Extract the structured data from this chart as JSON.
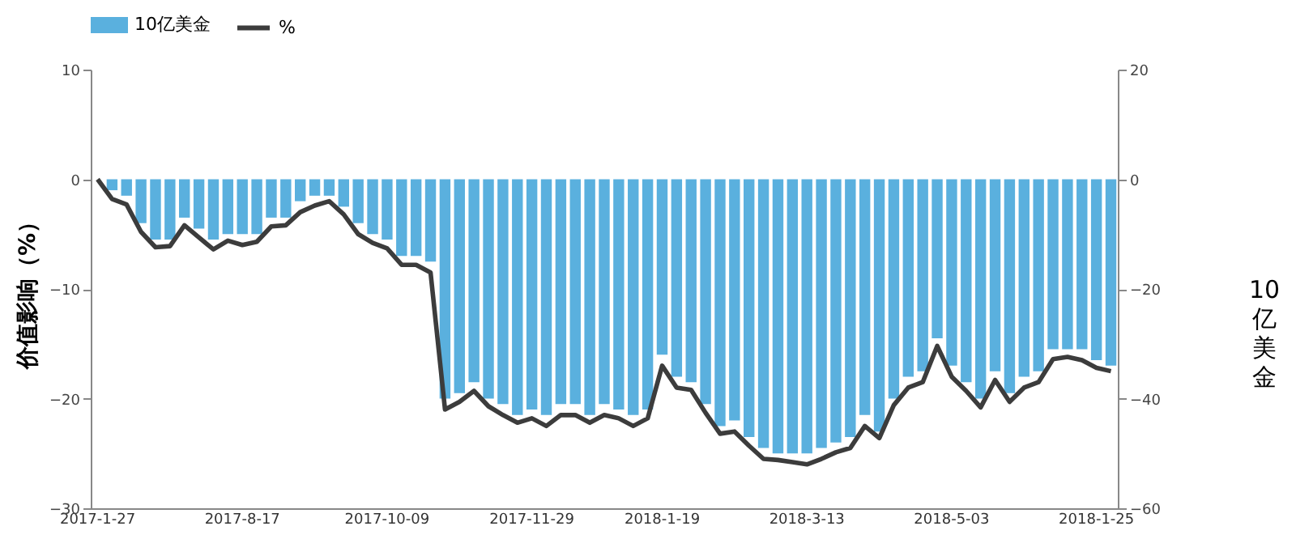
{
  "chart_data": {
    "type": "bar",
    "ylabel": "价值影响（%）",
    "y2label": "10亿美金",
    "categories": [
      "2017-1-27",
      null,
      null,
      null,
      null,
      null,
      null,
      null,
      null,
      null,
      "2017-8-17",
      null,
      null,
      null,
      null,
      null,
      null,
      null,
      null,
      null,
      "2017-10-09",
      null,
      null,
      null,
      null,
      null,
      null,
      null,
      null,
      null,
      "2017-11-29",
      null,
      null,
      null,
      null,
      null,
      null,
      null,
      null,
      "2018-1-19",
      null,
      null,
      null,
      null,
      null,
      null,
      null,
      null,
      null,
      "2018-3-13",
      null,
      null,
      null,
      null,
      null,
      null,
      null,
      null,
      null,
      "2018-5-03",
      null,
      null,
      null,
      null,
      null,
      null,
      null,
      null,
      null,
      "2018-1-25",
      null
    ],
    "series": [
      {
        "name": "10亿美金",
        "axis": "y2",
        "color": "#5ab0de",
        "values": [
          0,
          -2,
          -3,
          -8,
          -11,
          -11,
          -7,
          -9,
          -11,
          -10,
          -10,
          -10,
          -7,
          -7,
          -4,
          -3,
          -3,
          -5,
          -8,
          -10,
          -11,
          -14,
          -14,
          -15,
          -40,
          -39,
          -37,
          -40,
          -41,
          -43,
          -42,
          -43,
          -41,
          -41,
          -43,
          -41,
          -42,
          -43,
          -42,
          -32,
          -36,
          -37,
          -41,
          -45,
          -44,
          -47,
          -49,
          -50,
          -50,
          -50,
          -49,
          -48,
          -47,
          -43,
          -46,
          -40,
          -36,
          -35,
          -29,
          -34,
          -37,
          -40,
          -35,
          -39,
          -36,
          -35,
          -31,
          -31,
          -31,
          -33,
          -34
        ]
      },
      {
        "name": "%",
        "type": "line",
        "color": "#3c3c3c",
        "values": [
          0,
          -1.8,
          -2.3,
          -4.8,
          -6.2,
          -6.1,
          -4.2,
          -5.3,
          -6.4,
          -5.6,
          -6.0,
          -5.7,
          -4.3,
          -4.2,
          -3.0,
          -2.4,
          -2.0,
          -3.2,
          -5.0,
          -5.8,
          -6.3,
          -7.8,
          -7.8,
          -8.5,
          -21.0,
          -20.3,
          -19.3,
          -20.7,
          -21.5,
          -22.2,
          -21.8,
          -22.5,
          -21.5,
          -21.5,
          -22.2,
          -21.5,
          -21.8,
          -22.5,
          -21.8,
          -17.0,
          -19.0,
          -19.2,
          -21.3,
          -23.2,
          -23.0,
          -24.3,
          -25.5,
          -25.6,
          -25.8,
          -26.0,
          -25.5,
          -24.9,
          -24.5,
          -22.5,
          -23.6,
          -20.6,
          -19.0,
          -18.5,
          -15.2,
          -18.0,
          -19.3,
          -20.8,
          -18.3,
          -20.3,
          -19.0,
          -18.5,
          -16.4,
          -16.2,
          -16.5,
          -17.2,
          -17.5
        ]
      }
    ],
    "ylim": [
      -30,
      10
    ],
    "yticks": [
      10,
      0,
      -10,
      -20,
      -30
    ],
    "y2lim": [
      -60,
      20
    ],
    "y2ticks": [
      20,
      0,
      -20,
      -40,
      -60
    ],
    "legend": "top",
    "grid": false,
    "marker": "none",
    "line_style": "solid"
  }
}
